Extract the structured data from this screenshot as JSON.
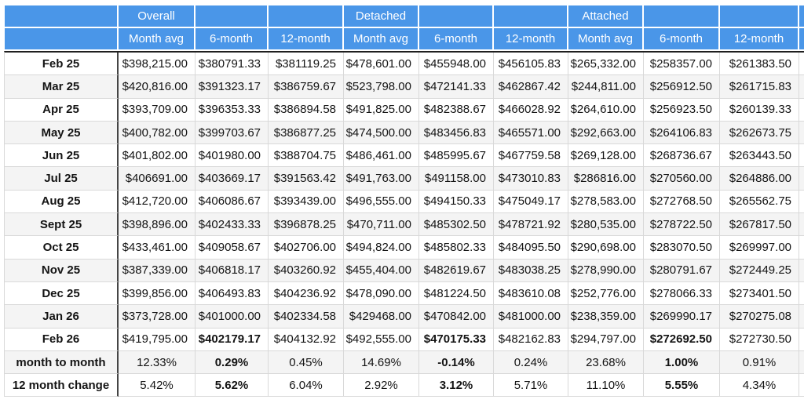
{
  "colors": {
    "header_bg": "#4a96e8",
    "header_text": "#ffffff",
    "row_stripe": "#f4f4f4",
    "grid_line": "#d9d9d9",
    "label_divider": "#454545",
    "header_rule": "#1f1f1f"
  },
  "chart_data": {
    "type": "table",
    "column_groups": [
      "Overall",
      "Detached",
      "Attached"
    ],
    "sub_columns": [
      "Month avg",
      "6-month",
      "12-month"
    ],
    "header_top": [
      "",
      "Overall",
      "",
      "",
      "Detached",
      "",
      "",
      "Attached",
      "",
      "",
      ""
    ],
    "header_sub": [
      "",
      "Month avg",
      "6-month",
      "12-month",
      "Month avg",
      "6-month",
      "12-month",
      "Month avg",
      "6-month",
      "12-month",
      ""
    ],
    "rows": [
      {
        "label": "Feb 25",
        "align": "right",
        "bold_cols": [],
        "cells": [
          "$398,215.00",
          "$380791.33",
          "$381119.25",
          "$478,601.00",
          "$455948.00",
          "$456105.83",
          "$265,332.00",
          "$258357.00",
          "$261383.50"
        ]
      },
      {
        "label": "Mar 25",
        "align": "right",
        "bold_cols": [],
        "cells": [
          "$420,816.00",
          "$391323.17",
          "$386759.67",
          "$523,798.00",
          "$472141.33",
          "$462867.42",
          "$244,811.00",
          "$256912.50",
          "$261715.83"
        ]
      },
      {
        "label": "Apr 25",
        "align": "right",
        "bold_cols": [],
        "cells": [
          "$393,709.00",
          "$396353.33",
          "$386894.58",
          "$491,825.00",
          "$482388.67",
          "$466028.92",
          "$264,610.00",
          "$256923.50",
          "$260139.33"
        ]
      },
      {
        "label": "May 25",
        "align": "right",
        "bold_cols": [],
        "cells": [
          "$400,782.00",
          "$399703.67",
          "$386877.25",
          "$474,500.00",
          "$483456.83",
          "$465571.00",
          "$292,663.00",
          "$264106.83",
          "$262673.75"
        ]
      },
      {
        "label": "Jun 25",
        "align": "right",
        "bold_cols": [],
        "cells": [
          "$401,802.00",
          "$401980.00",
          "$388704.75",
          "$486,461.00",
          "$485995.67",
          "$467759.58",
          "$269,128.00",
          "$268736.67",
          "$263443.50"
        ]
      },
      {
        "label": "Jul 25",
        "align": "right",
        "bold_cols": [],
        "cells": [
          "$406691.00",
          "$403669.17",
          "$391563.42",
          "$491,763.00",
          "$491158.00",
          "$473010.83",
          "$286816.00",
          "$270560.00",
          "$264886.00"
        ]
      },
      {
        "label": "Aug 25",
        "align": "right",
        "bold_cols": [],
        "cells": [
          "$412,720.00",
          "$406086.67",
          "$393439.00",
          "$496,555.00",
          "$494150.33",
          "$475049.17",
          "$278,583.00",
          "$272768.50",
          "$265562.75"
        ]
      },
      {
        "label": "Sept 25",
        "align": "right",
        "bold_cols": [],
        "cells": [
          "$398,896.00",
          "$402433.33",
          "$396878.25",
          "$470,711.00",
          "$485302.50",
          "$478721.92",
          "$280,535.00",
          "$278722.50",
          "$267817.50"
        ]
      },
      {
        "label": "Oct 25",
        "align": "right",
        "bold_cols": [],
        "cells": [
          "$433,461.00",
          "$409058.67",
          "$402706.00",
          "$494,824.00",
          "$485802.33",
          "$484095.50",
          "$290,698.00",
          "$283070.50",
          "$269997.00"
        ]
      },
      {
        "label": "Nov 25",
        "align": "right",
        "bold_cols": [],
        "cells": [
          "$387,339.00",
          "$406818.17",
          "$403260.92",
          "$455,404.00",
          "$482619.67",
          "$483038.25",
          "$278,990.00",
          "$280791.67",
          "$272449.25"
        ]
      },
      {
        "label": "Dec 25",
        "align": "right",
        "bold_cols": [],
        "cells": [
          "$399,856.00",
          "$406493.83",
          "$404236.92",
          "$478,090.00",
          "$481224.50",
          "$483610.08",
          "$252,776.00",
          "$278066.33",
          "$273401.50"
        ]
      },
      {
        "label": "Jan 26",
        "align": "right",
        "bold_cols": [],
        "cells": [
          "$373,728.00",
          "$401000.00",
          "$402334.58",
          "$429468.00",
          "$470842.00",
          "$481000.00",
          "$238,359.00",
          "$269990.17",
          "$270275.08"
        ]
      },
      {
        "label": "Feb 26",
        "align": "right",
        "bold_cols": [
          1,
          4,
          7
        ],
        "cells": [
          "$419,795.00",
          "$402179.17",
          "$404132.92",
          "$492,555.00",
          "$470175.33",
          "$482162.83",
          "$294,797.00",
          "$272692.50",
          "$272730.50"
        ]
      },
      {
        "label": "month to month",
        "align": "center",
        "bold_cols": [
          1,
          4,
          7
        ],
        "cells": [
          "12.33%",
          "0.29%",
          "0.45%",
          "14.69%",
          "-0.14%",
          "0.24%",
          "23.68%",
          "1.00%",
          "0.91%"
        ]
      },
      {
        "label": "12 month change",
        "align": "center",
        "bold_cols": [
          1,
          4,
          7
        ],
        "cells": [
          "5.42%",
          "5.62%",
          "6.04%",
          "2.92%",
          "3.12%",
          "5.71%",
          "11.10%",
          "5.55%",
          "4.34%"
        ]
      }
    ]
  }
}
